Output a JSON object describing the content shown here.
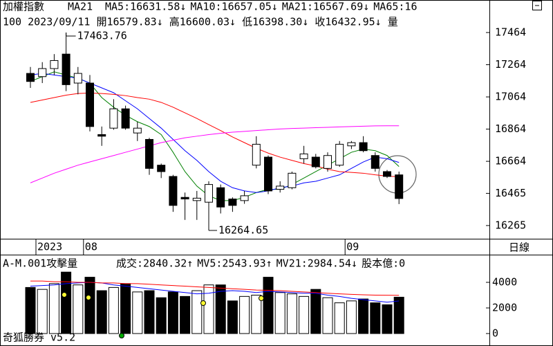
{
  "chart_data": [
    {
      "type": "candlestick",
      "title": "加權指數",
      "subtitle": "MA21",
      "legend": [
        {
          "text": "MA5:16631.58↓",
          "color": "#008000"
        },
        {
          "text": "MA10:16657.05↓",
          "color": "#0000ff"
        },
        {
          "text": "MA21:16567.69↓",
          "color": "#ff0000"
        },
        {
          "text": "MA65:16",
          "color": "#ff00ff"
        }
      ],
      "info": "100 2023/09/11 開16579.83↓ 高16600.03↓ 低16398.30↓ 收16432.95↓ 量",
      "categories": [
        "2023",
        null,
        null,
        null,
        "08",
        null,
        null,
        null,
        null,
        null,
        null,
        null,
        null,
        null,
        null,
        null,
        null,
        null,
        null,
        null,
        null,
        null,
        null,
        null,
        null,
        null,
        "09",
        null,
        null,
        null,
        null,
        null
      ],
      "open": [
        17210,
        17190,
        17240,
        17330,
        17150,
        17150,
        16830,
        16870,
        16990,
        16840,
        16800,
        16640,
        16570,
        16440,
        16420,
        16410,
        16500,
        16430,
        16420,
        16640,
        16690,
        16490,
        16500,
        16680,
        16690,
        16620,
        16640,
        16760,
        16780,
        16700,
        16600,
        16579.83
      ],
      "high": [
        17250,
        17280,
        17330,
        17463.76,
        17250,
        17200,
        16880,
        17050,
        17010,
        16910,
        16810,
        16650,
        16580,
        16470,
        16480,
        16540,
        16520,
        16440,
        16480,
        16820,
        16700,
        16540,
        16600,
        16760,
        16710,
        16720,
        16790,
        16790,
        16820,
        16720,
        16610,
        16600.03
      ],
      "low": [
        17120,
        17150,
        17200,
        17100,
        17080,
        16850,
        16760,
        16860,
        16860,
        16790,
        16580,
        16560,
        16350,
        16300,
        16300,
        16264.65,
        16340,
        16350,
        16400,
        16620,
        16460,
        16470,
        16490,
        16650,
        16620,
        16600,
        16630,
        16740,
        16720,
        16600,
        16560,
        16398.3
      ],
      "close": [
        17160,
        17240,
        17290,
        17140,
        17210,
        16880,
        16820,
        16990,
        16870,
        16870,
        16620,
        16600,
        16390,
        16430,
        16435,
        16520,
        16380,
        16390,
        16450,
        16770,
        16480,
        16510,
        16590,
        16710,
        16630,
        16700,
        16770,
        16780,
        16730,
        16620,
        16570,
        16432.95
      ],
      "up_color": "#ffffff",
      "down_color": "#000000",
      "lines": [
        {
          "color": "#008000",
          "values": [
            17160,
            17190,
            17220,
            17200,
            17180,
            17150,
            17060,
            17000,
            16950,
            16910,
            16880,
            16830,
            16720,
            16600,
            16510,
            16450,
            16420,
            16420,
            16440,
            16470,
            16490,
            16490,
            16520,
            16560,
            16600,
            16640,
            16680,
            16720,
            16740,
            16730,
            16700,
            16631.58
          ]
        },
        {
          "color": "#0000ff",
          "values": [
            17200,
            17210,
            17200,
            17190,
            17180,
            17150,
            17120,
            17090,
            17040,
            16990,
            16930,
            16870,
            16800,
            16730,
            16670,
            16600,
            16540,
            16500,
            16480,
            16470,
            16480,
            16500,
            16510,
            16530,
            16540,
            16560,
            16580,
            16620,
            16660,
            16690,
            16680,
            16657.05
          ]
        },
        {
          "color": "#ff0000",
          "values": [
            17030,
            17045,
            17060,
            17075,
            17085,
            17088,
            17085,
            17080,
            17072,
            17060,
            17050,
            17030,
            17000,
            16965,
            16930,
            16892,
            16855,
            16815,
            16780,
            16745,
            16715,
            16690,
            16670,
            16650,
            16635,
            16615,
            16600,
            16595,
            16590,
            16580,
            16572,
            16567.69
          ]
        },
        {
          "color": "#ff00ff",
          "values": [
            16530,
            16560,
            16590,
            16615,
            16640,
            16660,
            16680,
            16700,
            16720,
            16740,
            16760,
            16780,
            16795,
            16810,
            16820,
            16830,
            16838,
            16845,
            16850,
            16855,
            16860,
            16865,
            16868,
            16870,
            16873,
            16875,
            16878,
            16880,
            16882,
            16884,
            16885,
            16885
          ]
        }
      ],
      "annotations": [
        "17463.76",
        "16264.65"
      ],
      "ylim": [
        16183,
        17666
      ],
      "yticks": [
        17464,
        17264,
        17064,
        16864,
        16664,
        16465,
        16265
      ],
      "period": "日線"
    },
    {
      "type": "bar",
      "title": "A-M.001攻擊量",
      "legend": [
        {
          "text": "成交:2840.32↑",
          "color": "#008000"
        },
        {
          "text": "MV5:2543.93↑",
          "color": "#0000ff"
        },
        {
          "text": "MV21:2984.54↓",
          "color": "#ff0000"
        },
        {
          "text": "股本億:0",
          "color": "#ff00ff"
        }
      ],
      "values": [
        3600,
        3450,
        3900,
        4800,
        3800,
        4400,
        3350,
        3600,
        3900,
        3250,
        3350,
        2800,
        3250,
        2900,
        3350,
        3800,
        3800,
        2550,
        2900,
        3000,
        4400,
        3200,
        3100,
        2900,
        3450,
        2800,
        2400,
        2550,
        2700,
        2400,
        2250,
        2840.32
      ],
      "lines": [
        {
          "color": "#0000ff",
          "values": [
            3700,
            3750,
            3800,
            3900,
            3950,
            4000,
            3950,
            3800,
            3700,
            3600,
            3500,
            3400,
            3300,
            3200,
            3100,
            3150,
            3300,
            3350,
            3300,
            3200,
            3300,
            3250,
            3200,
            3150,
            3150,
            3000,
            2900,
            2750,
            2650,
            2550,
            2450,
            2543.93
          ]
        },
        {
          "color": "#ff0000",
          "values": [
            4100,
            4100,
            4050,
            4050,
            4000,
            4000,
            3950,
            3950,
            3900,
            3900,
            3850,
            3800,
            3750,
            3700,
            3650,
            3600,
            3550,
            3500,
            3450,
            3400,
            3380,
            3350,
            3300,
            3250,
            3200,
            3150,
            3100,
            3060,
            3030,
            3000,
            2990,
            2984.54
          ]
        }
      ],
      "ylim": [
        -973,
        6162
      ],
      "yticks": [
        0,
        2000,
        4000
      ]
    }
  ],
  "footer": "奇狐勝券 v5.2"
}
